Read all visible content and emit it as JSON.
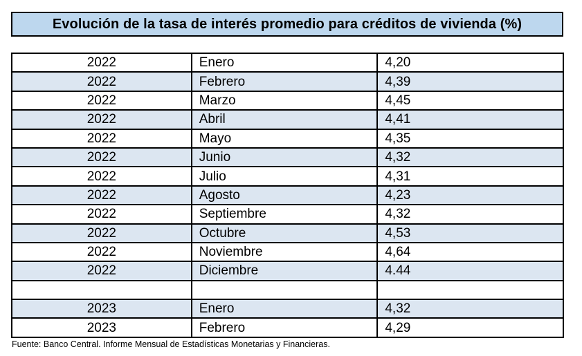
{
  "title": "Evolución de la tasa de interés promedio para créditos de vivienda (%)",
  "colors": {
    "title_bg": "#BDD7EE",
    "row_alt_bg": "#DCE6F1",
    "border": "#000000"
  },
  "table": {
    "rows": [
      {
        "year": "2022",
        "month": "Enero",
        "value": "4,20"
      },
      {
        "year": "2022",
        "month": "Febrero",
        "value": "4,39"
      },
      {
        "year": "2022",
        "month": "Marzo",
        "value": "4,45"
      },
      {
        "year": "2022",
        "month": "Abril",
        "value": "4,41"
      },
      {
        "year": "2022",
        "month": "Mayo",
        "value": "4,35"
      },
      {
        "year": "2022",
        "month": "Junio",
        "value": "4,32"
      },
      {
        "year": "2022",
        "month": "Julio",
        "value": "4,31"
      },
      {
        "year": "2022",
        "month": "Agosto",
        "value": "4,23"
      },
      {
        "year": "2022",
        "month": "Septiembre",
        "value": "4,32"
      },
      {
        "year": "2022",
        "month": "Octubre",
        "value": "4,53"
      },
      {
        "year": "2022",
        "month": "Noviembre",
        "value": "4,64"
      },
      {
        "year": "2022",
        "month": "Diciembre",
        "value": "4.44"
      },
      {
        "year": "",
        "month": "",
        "value": ""
      },
      {
        "year": "2023",
        "month": "Enero",
        "value": "4,32"
      },
      {
        "year": "2023",
        "month": "Febrero",
        "value": "4,29"
      }
    ]
  },
  "footer": "Fuente: Banco Central. Informe Mensual de Estadísticas Monetarias y Financieras."
}
